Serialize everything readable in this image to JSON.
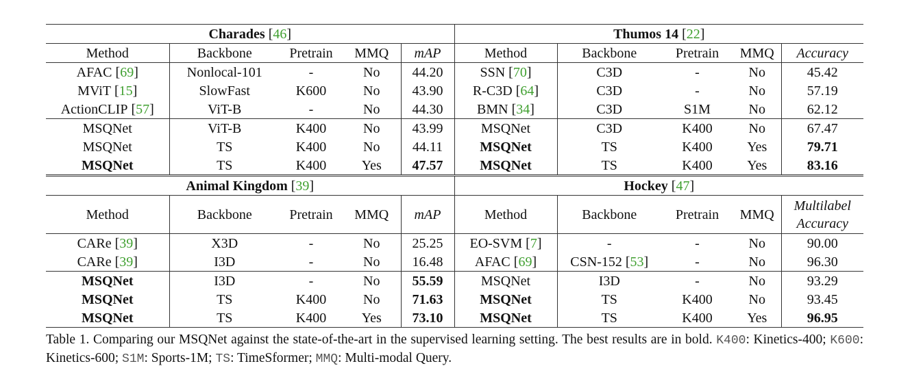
{
  "blocks": [
    {
      "left": {
        "title": "Charades",
        "ref": [
          "[",
          "46",
          "]"
        ],
        "columns": [
          "Method",
          "Backbone",
          "Pretrain",
          "MMQ",
          "mAP"
        ],
        "groups": [
          [
            {
              "cells": [
                {
                  "text": "AFAC",
                  "ref": [
                    "[",
                    "69",
                    "]"
                  ]
                },
                "Nonlocal-101",
                "-",
                "No",
                "44.20"
              ]
            },
            {
              "cells": [
                {
                  "text": "MViT",
                  "ref": [
                    "[",
                    "15",
                    "]"
                  ]
                },
                "SlowFast",
                "K600",
                "No",
                "43.90"
              ]
            },
            {
              "cells": [
                {
                  "text": "ActionCLIP",
                  "ref": [
                    "[",
                    "57",
                    "]"
                  ]
                },
                "ViT-B",
                "-",
                "No",
                "44.30"
              ]
            }
          ],
          [
            {
              "cells": [
                "MSQNet",
                "ViT-B",
                "K400",
                "No",
                "43.99"
              ]
            },
            {
              "cells": [
                "MSQNet",
                "TS",
                "K400",
                "No",
                "44.11"
              ]
            },
            {
              "cells": [
                "MSQNet",
                "TS",
                "K400",
                "Yes",
                "47.57"
              ],
              "bold": [
                0,
                4
              ]
            }
          ]
        ]
      },
      "right": {
        "title": "Thumos 14",
        "ref": [
          "[",
          "22",
          "]"
        ],
        "columns": [
          "Method",
          "Backbone",
          "Pretrain",
          "MMQ",
          "Accuracy"
        ],
        "groups": [
          [
            {
              "cells": [
                {
                  "text": "SSN",
                  "ref": [
                    "[",
                    "70",
                    "]"
                  ]
                },
                "C3D",
                "-",
                "No",
                "45.42"
              ]
            },
            {
              "cells": [
                {
                  "text": "R-C3D",
                  "ref": [
                    "[",
                    "64",
                    "]"
                  ]
                },
                "C3D",
                "-",
                "No",
                "57.19"
              ]
            },
            {
              "cells": [
                {
                  "text": "BMN",
                  "ref": [
                    "[",
                    "34",
                    "]"
                  ]
                },
                "C3D",
                "S1M",
                "No",
                "62.12"
              ]
            }
          ],
          [
            {
              "cells": [
                "MSQNet",
                "C3D",
                "K400",
                "No",
                "67.47"
              ]
            },
            {
              "cells": [
                "MSQNet",
                "TS",
                "K400",
                "Yes",
                "79.71"
              ],
              "bold": [
                0,
                4
              ]
            },
            {
              "cells": [
                "MSQNet",
                "TS",
                "K400",
                "Yes",
                "83.16"
              ],
              "bold": [
                0,
                4
              ]
            }
          ]
        ]
      }
    },
    {
      "left": {
        "title": "Animal Kingdom",
        "ref": [
          "[",
          "39",
          "]"
        ],
        "columns": [
          "Method",
          "Backbone",
          "Pretrain",
          "MMQ",
          "mAP"
        ],
        "groups": [
          [
            {
              "cells": [
                {
                  "text": "CARe",
                  "ref": [
                    "[",
                    "39",
                    "]"
                  ]
                },
                "X3D",
                "-",
                "No",
                "25.25"
              ]
            },
            {
              "cells": [
                {
                  "text": "CARe",
                  "ref": [
                    "[",
                    "39",
                    "]"
                  ]
                },
                "I3D",
                "-",
                "No",
                "16.48"
              ]
            }
          ],
          [
            {
              "cells": [
                "MSQNet",
                "I3D",
                "-",
                "No",
                "55.59"
              ],
              "bold": [
                0,
                4
              ]
            },
            {
              "cells": [
                "MSQNet",
                "TS",
                "K400",
                "No",
                "71.63"
              ],
              "bold": [
                0,
                4
              ]
            },
            {
              "cells": [
                "MSQNet",
                "TS",
                "K400",
                "Yes",
                "73.10"
              ],
              "bold": [
                0,
                4
              ]
            }
          ]
        ]
      },
      "right": {
        "title": "Hockey",
        "ref": [
          "[",
          "47",
          "]"
        ],
        "columns": [
          "Method",
          "Backbone",
          "Pretrain",
          "MMQ",
          "Multilabel Accuracy"
        ],
        "groups": [
          [
            {
              "cells": [
                {
                  "text": "EO-SVM",
                  "ref": [
                    "[",
                    "7",
                    "]"
                  ]
                },
                "-",
                "-",
                "No",
                "90.00"
              ]
            },
            {
              "cells": [
                {
                  "text": "AFAC",
                  "ref": [
                    "[",
                    "69",
                    "]"
                  ]
                },
                {
                  "text": "CSN-152",
                  "ref": [
                    "[",
                    "53",
                    "]"
                  ]
                },
                "-",
                "No",
                "96.30"
              ]
            }
          ],
          [
            {
              "cells": [
                "MSQNet",
                "I3D",
                "-",
                "No",
                "93.29"
              ]
            },
            {
              "cells": [
                "MSQNet",
                "TS",
                "K400",
                "No",
                "93.45"
              ],
              "bold": [
                0
              ]
            },
            {
              "cells": [
                "MSQNet",
                "TS",
                "K400",
                "Yes",
                "96.95"
              ],
              "bold": [
                0,
                4
              ]
            }
          ]
        ]
      }
    }
  ],
  "caption": [
    {
      "text": "Table 1. Comparing our MSQNet against the state-of-the-art in the supervised learning setting.  The best results are in bold. "
    },
    {
      "text": "K400",
      "mono": true
    },
    {
      "text": ": Kinetics-400; "
    },
    {
      "text": "K600",
      "mono": true
    },
    {
      "text": ": Kinetics-600; "
    },
    {
      "text": "S1M",
      "mono": true
    },
    {
      "text": ": Sports-1M; "
    },
    {
      "text": "TS",
      "mono": true
    },
    {
      "text": ": TimeSformer; "
    },
    {
      "text": "MMQ",
      "mono": true
    },
    {
      "text": ": Multi-modal Query."
    }
  ]
}
